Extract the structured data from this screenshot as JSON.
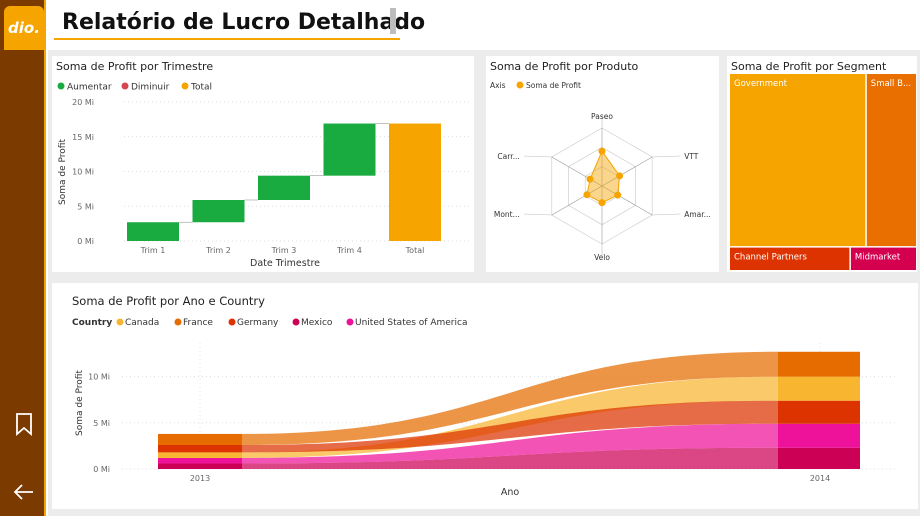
{
  "header": {
    "logo_text": "dio.",
    "title": "Relatório de Lucro Detalhado"
  },
  "sidebar": {
    "icons": [
      "bookmark-icon",
      "back-arrow-icon"
    ]
  },
  "colors": {
    "increase": "#1aab40",
    "decrease": "#d64550",
    "total": "#f5a400",
    "canada": "#f8b630",
    "france": "#e66c00",
    "germany": "#dd3300",
    "mexico": "#cc0055",
    "usa": "#ee1199",
    "government": "#f5a400",
    "small_business": "#e86f00",
    "channel_partners": "#dd3300",
    "midmarket": "#d4004f"
  },
  "chart_data": [
    {
      "type": "waterfall",
      "title": "Soma de Profit por Trimestre",
      "legend": [
        "Aumentar",
        "Diminuir",
        "Total"
      ],
      "categories": [
        "Trim 1",
        "Trim 2",
        "Trim 3",
        "Trim 4",
        "Total"
      ],
      "values": [
        2.7,
        3.2,
        3.5,
        7.5,
        16.9
      ],
      "y_ticks": [
        "20 Mi",
        "15 Mi",
        "10 Mi",
        "5 Mi",
        "0 Mi"
      ],
      "ylim": [
        0,
        20
      ],
      "xlabel": "Date Trimestre",
      "ylabel": "Soma de Profit"
    },
    {
      "type": "radar",
      "title": "Soma de Profit por Produto",
      "legend_axis_label": "Axis",
      "legend": [
        "Soma de Profit"
      ],
      "categories": [
        "Paseo",
        "VTT",
        "Amar...",
        "Velo",
        "Mont...",
        "Carr..."
      ],
      "values": [
        4.8,
        2.8,
        2.5,
        2.3,
        2.4,
        1.9
      ],
      "max": 8
    },
    {
      "type": "treemap",
      "title": "Soma de Profit por Segment",
      "categories": [
        "Government",
        "Small B...",
        "Channel Partners",
        "Midmarket"
      ],
      "values": [
        11.4,
        4.1,
        1.3,
        0.7
      ]
    },
    {
      "type": "ribbon",
      "title": "Soma de Profit por Ano e Country",
      "legend_label": "Country",
      "legend": [
        "Canada",
        "France",
        "Germany",
        "Mexico",
        "United States of America"
      ],
      "categories": [
        "2013",
        "2014"
      ],
      "series": [
        {
          "name": "Mexico",
          "values": [
            0.6,
            2.3
          ]
        },
        {
          "name": "United States of America",
          "values": [
            0.6,
            2.6
          ]
        },
        {
          "name": "Germany",
          "values": [
            0.8,
            2.5
          ]
        },
        {
          "name": "Canada",
          "values": [
            0.6,
            2.6
          ]
        },
        {
          "name": "France",
          "values": [
            1.2,
            2.7
          ]
        }
      ],
      "y_ticks": [
        "10 Mi",
        "5 Mi",
        "0 Mi"
      ],
      "ylim": [
        0,
        13
      ],
      "xlabel": "Ano",
      "ylabel": "Soma de Profit"
    }
  ]
}
